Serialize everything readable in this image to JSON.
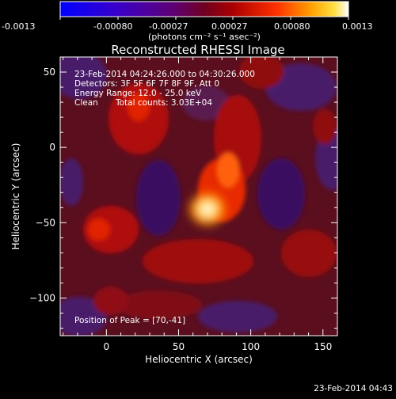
{
  "chart_data": {
    "type": "heatmap",
    "title": "Reconstructed RHESSI Image",
    "xlabel": "Heliocentric X (arcsec)",
    "ylabel": "Heliocentric Y (arcsec)",
    "xlim": [
      -32,
      160
    ],
    "ylim": [
      -125,
      60
    ],
    "xticks": [
      0,
      50,
      100,
      150
    ],
    "yticks": [
      -100,
      -50,
      0,
      50
    ],
    "colorbar": {
      "ticks": [
        "-0.0013",
        "-0.00080",
        "-0.00027",
        "0.00027",
        "0.00080",
        "0.0013"
      ],
      "unit_label": "(photons cm⁻² s⁻¹ asec⁻²)",
      "colormap": "blue-purple-red-yellow-white"
    },
    "annotations": {
      "time_range": "23-Feb-2014 04:24:26.000 to 04:30:26.000",
      "detectors": "Detectors: 3F 5F 6F 7F 8F 9F, Att 0",
      "energy": "Energy Range: 12.0 - 25.0 keV",
      "clean": "Clean",
      "counts": "Total counts: 3.03E+04",
      "peak": "Position of Peak = [70,-41]"
    },
    "peak": {
      "x": 70,
      "y": -41
    },
    "footer": "23-Feb-2014 04:43"
  }
}
